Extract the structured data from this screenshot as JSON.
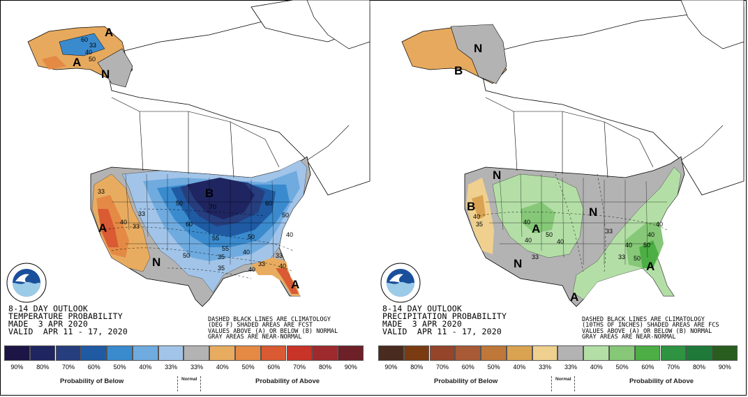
{
  "panels": [
    {
      "title_lines": [
        "8-14 DAY OUTLOOK",
        "TEMPERATURE PROBABILITY",
        "MADE  3 APR 2020",
        "VALID  APR 11 - 17, 2020"
      ],
      "note_lines": [
        "DASHED BLACK LINES ARE CLIMATOLOGY",
        "(DEG F) SHADED AREAS ARE FCST",
        "VALUES ABOVE (A) OR BELOW (B) NORMAL",
        "GRAY AREAS ARE NEAR-NORMAL"
      ],
      "map_labels": {
        "a1": "A",
        "a2": "A",
        "a3": "A",
        "a4": "A",
        "b1": "B",
        "n1": "N",
        "n2": "N"
      },
      "contour_labels": [
        "33",
        "40",
        "50",
        "60",
        "33",
        "40",
        "33",
        "50",
        "60",
        "70",
        "50",
        "40",
        "33",
        "33",
        "40",
        "50",
        "35",
        "35",
        "55",
        "33",
        "40",
        "60",
        "50",
        "55",
        "40"
      ],
      "legend": {
        "ticks": [
          "90%",
          "80%",
          "70%",
          "60%",
          "50%",
          "40%",
          "33%",
          "33%",
          "40%",
          "50%",
          "60%",
          "70%",
          "80%",
          "90%"
        ],
        "colors": [
          "#1c1545",
          "#1f2560",
          "#273e7e",
          "#1f5aa3",
          "#3a8bce",
          "#6fabdf",
          "#a2c4e8",
          "#b3b3b3",
          "#e8ac61",
          "#e48a45",
          "#d95a33",
          "#c83428",
          "#9e2a2e",
          "#6d2027"
        ],
        "below_label": "Probability of Below",
        "normal_label": "Normal",
        "above_label": "Probability of Above"
      }
    },
    {
      "title_lines": [
        "8-14 DAY OUTLOOK",
        "PRECIPITATION PROBABILITY",
        "MADE  3 APR 2020",
        "VALID  APR 11 - 17, 2020"
      ],
      "note_lines": [
        "DASHED BLACK LINES ARE CLIMATOLOGY",
        "(10THS OF INCHES) SHADED AREAS ARE FCS",
        "VALUES ABOVE (A) OR BELOW (B) NORMAL",
        "GRAY AREAS ARE NEAR-NORMAL"
      ],
      "map_labels": {
        "n1": "N",
        "n2": "N",
        "n3": "N",
        "n4": "N",
        "b1": "B",
        "b2": "B",
        "a1": "A",
        "a2": "A",
        "a3": "A"
      },
      "contour_labels": [
        "40",
        "35",
        "40",
        "33",
        "50",
        "40",
        "40",
        "33",
        "40",
        "50",
        "50",
        "40",
        "33",
        "40"
      ],
      "legend": {
        "ticks": [
          "90%",
          "80%",
          "70%",
          "60%",
          "50%",
          "40%",
          "33%",
          "33%",
          "40%",
          "50%",
          "60%",
          "70%",
          "80%",
          "90%"
        ],
        "colors": [
          "#4a2b1f",
          "#7a3b12",
          "#94452a",
          "#a85a36",
          "#c0773a",
          "#d9a352",
          "#efd08f",
          "#b3b3b3",
          "#b3dfa6",
          "#86c878",
          "#4cae44",
          "#2e9442",
          "#1f7a3a",
          "#285d1f"
        ],
        "below_label": "Probability of Below",
        "normal_label": "Normal",
        "above_label": "Probability of Above"
      }
    }
  ]
}
